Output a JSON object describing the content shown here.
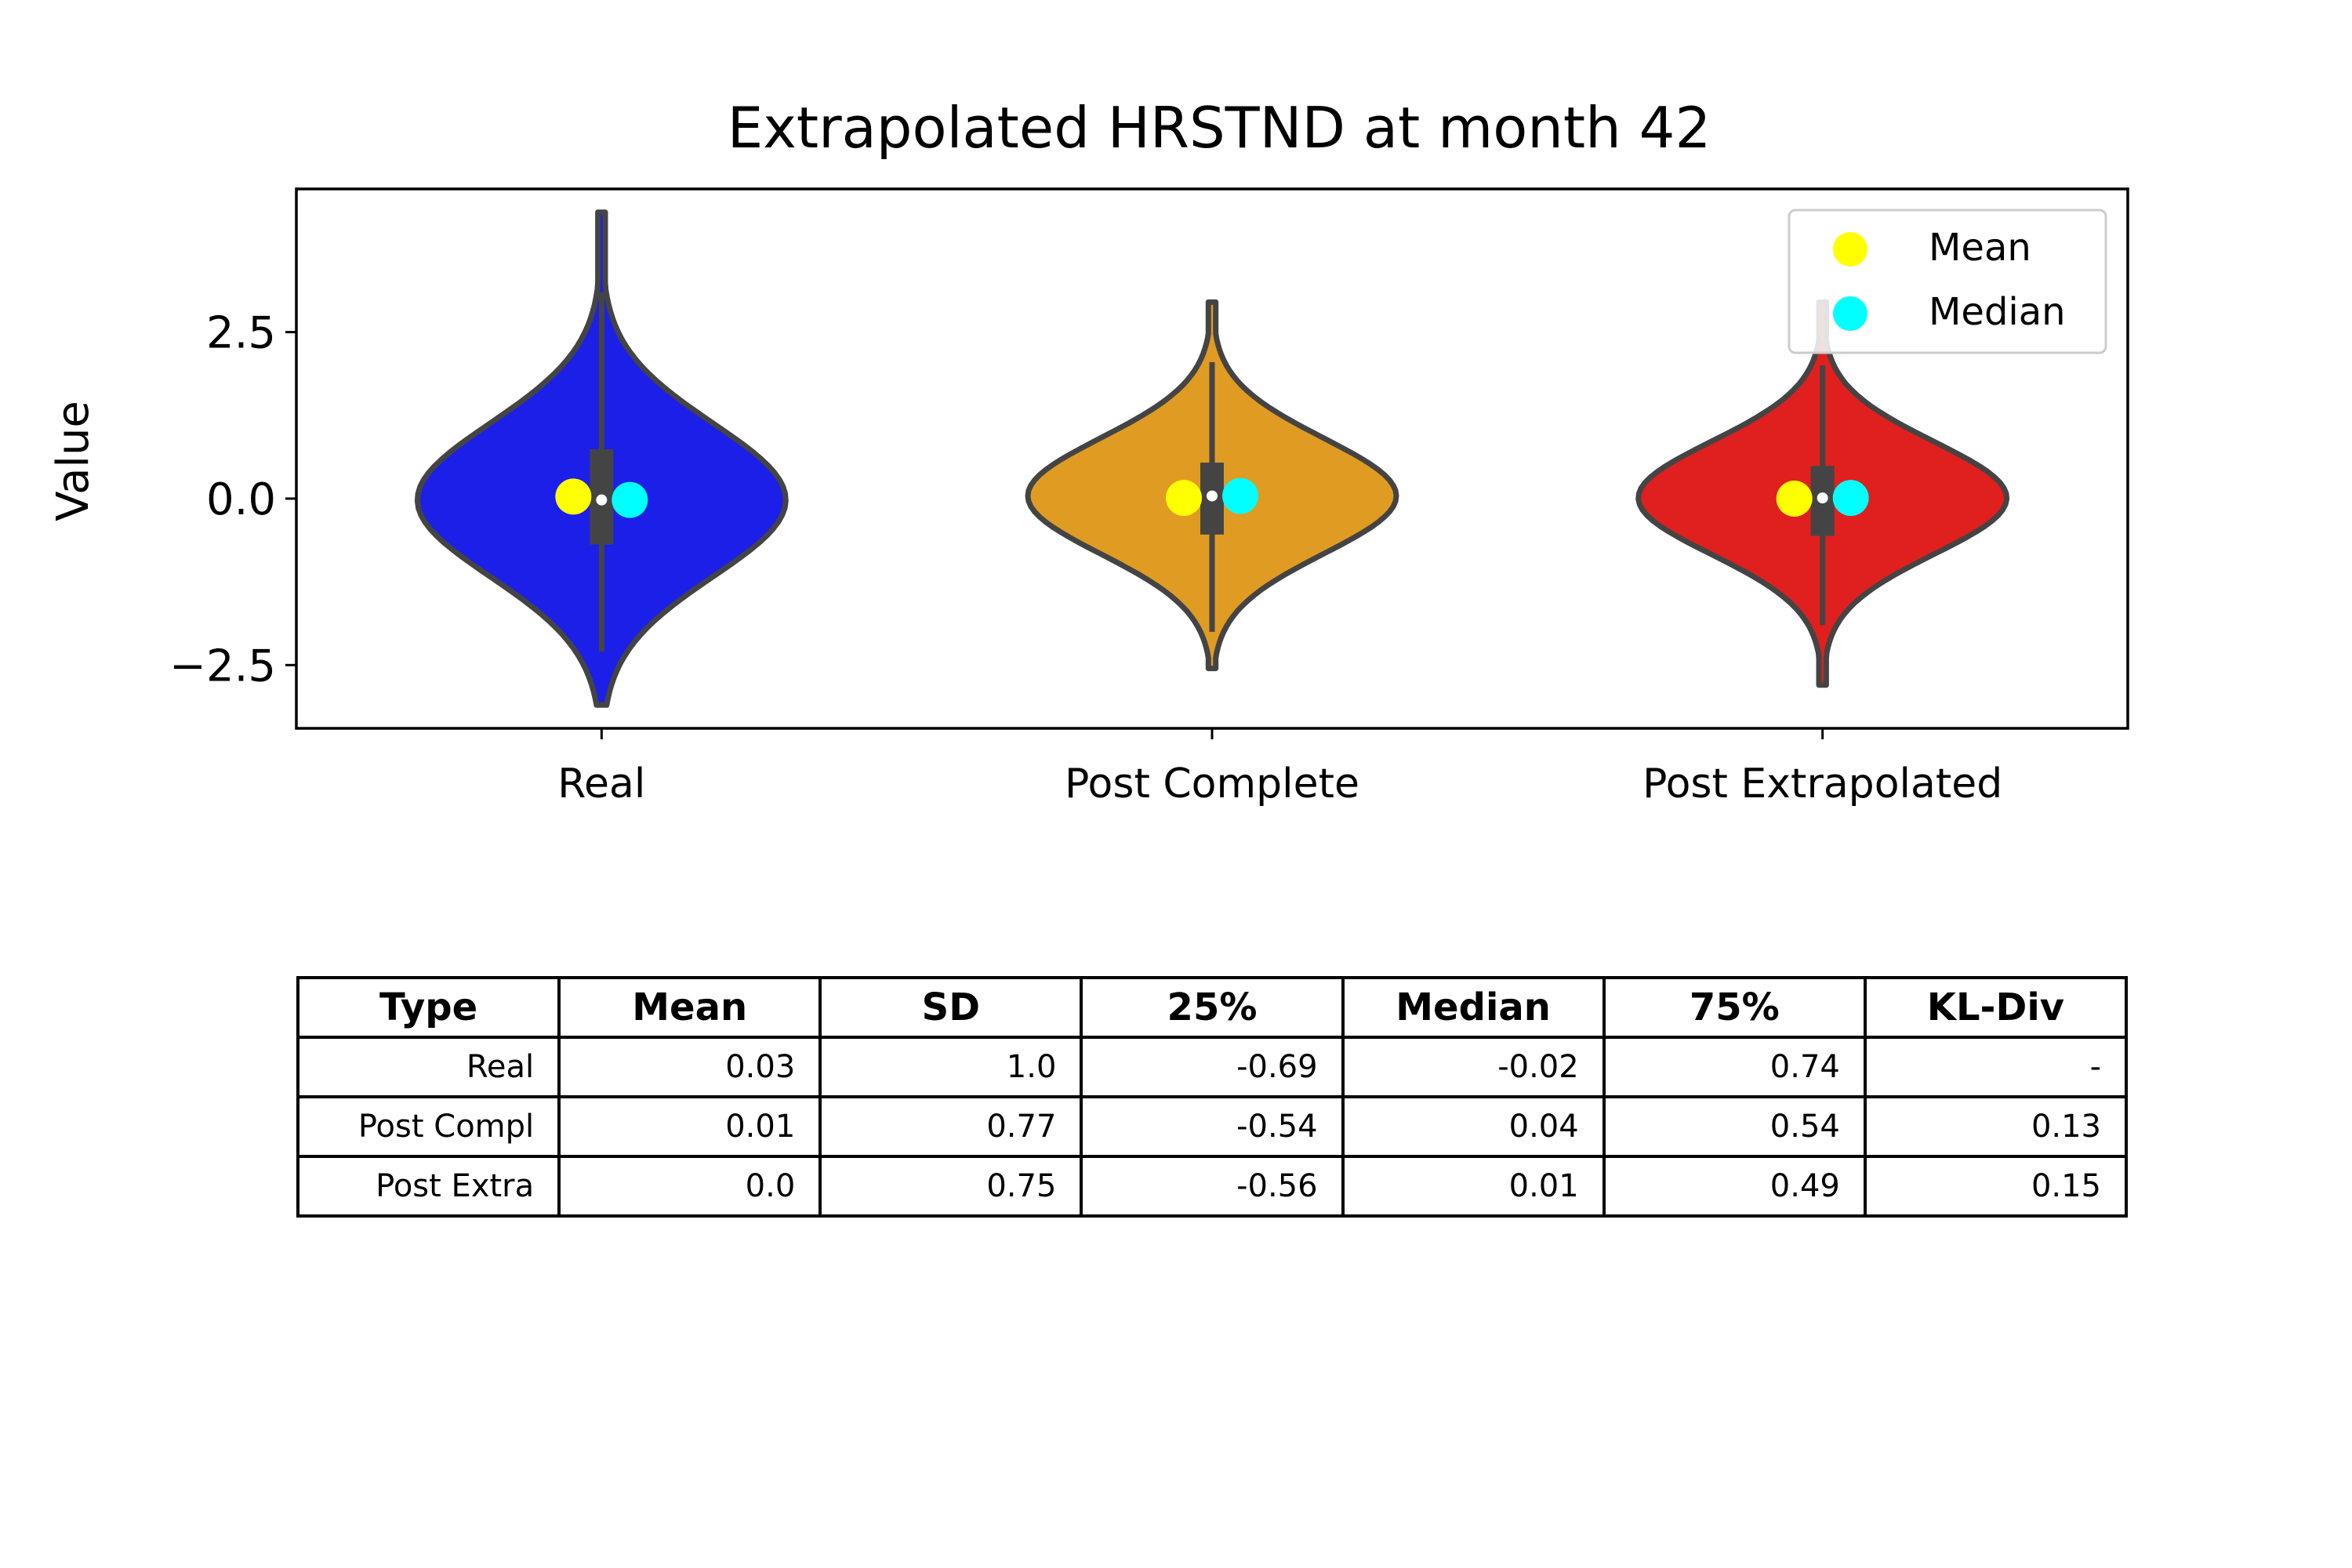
{
  "chart_data": {
    "type": "violin",
    "title": "Extrapolated HRSTND at month 42",
    "xlabel": "",
    "ylabel": "Value",
    "ylim": [
      -3.45,
      4.65
    ],
    "yticks": [
      -2.5,
      0.0,
      2.5
    ],
    "ytick_labels": [
      "−2.5",
      "0.0",
      "2.5"
    ],
    "grid": false,
    "legend_position": "top-right",
    "categories": [
      "Real",
      "Post Complete",
      "Post Extrapolated"
    ],
    "series": [
      {
        "category": "Real",
        "color": "#1c1fe8",
        "min": -3.1,
        "max": 4.3,
        "q1": -0.69,
        "median": -0.02,
        "q3": 0.74,
        "mean": 0.03,
        "whisker_low": -2.3,
        "whisker_high": 3.1
      },
      {
        "category": "Post Complete",
        "color": "#e09c22",
        "min": -2.55,
        "max": 2.95,
        "q1": -0.54,
        "median": 0.04,
        "q3": 0.54,
        "mean": 0.01,
        "whisker_low": -2.0,
        "whisker_high": 2.05
      },
      {
        "category": "Post Extrapolated",
        "color": "#e01f1f",
        "min": -2.8,
        "max": 2.95,
        "q1": -0.56,
        "median": 0.01,
        "q3": 0.49,
        "mean": 0.0,
        "whisker_low": -1.9,
        "whisker_high": 2.0
      }
    ],
    "legend": [
      {
        "label": "Mean",
        "color": "#ffff00"
      },
      {
        "label": "Median",
        "color": "#00ffff"
      }
    ]
  },
  "table": {
    "headers": [
      "Type",
      "Mean",
      "SD",
      "25%",
      "Median",
      "75%",
      "KL-Div"
    ],
    "rows": [
      [
        "Real",
        "0.03",
        "1.0",
        "-0.69",
        "-0.02",
        "0.74",
        "-"
      ],
      [
        "Post Compl",
        "0.01",
        "0.77",
        "-0.54",
        "0.04",
        "0.54",
        "0.13"
      ],
      [
        "Post Extra",
        "0.0",
        "0.75",
        "-0.56",
        "0.01",
        "0.49",
        "0.15"
      ]
    ]
  }
}
